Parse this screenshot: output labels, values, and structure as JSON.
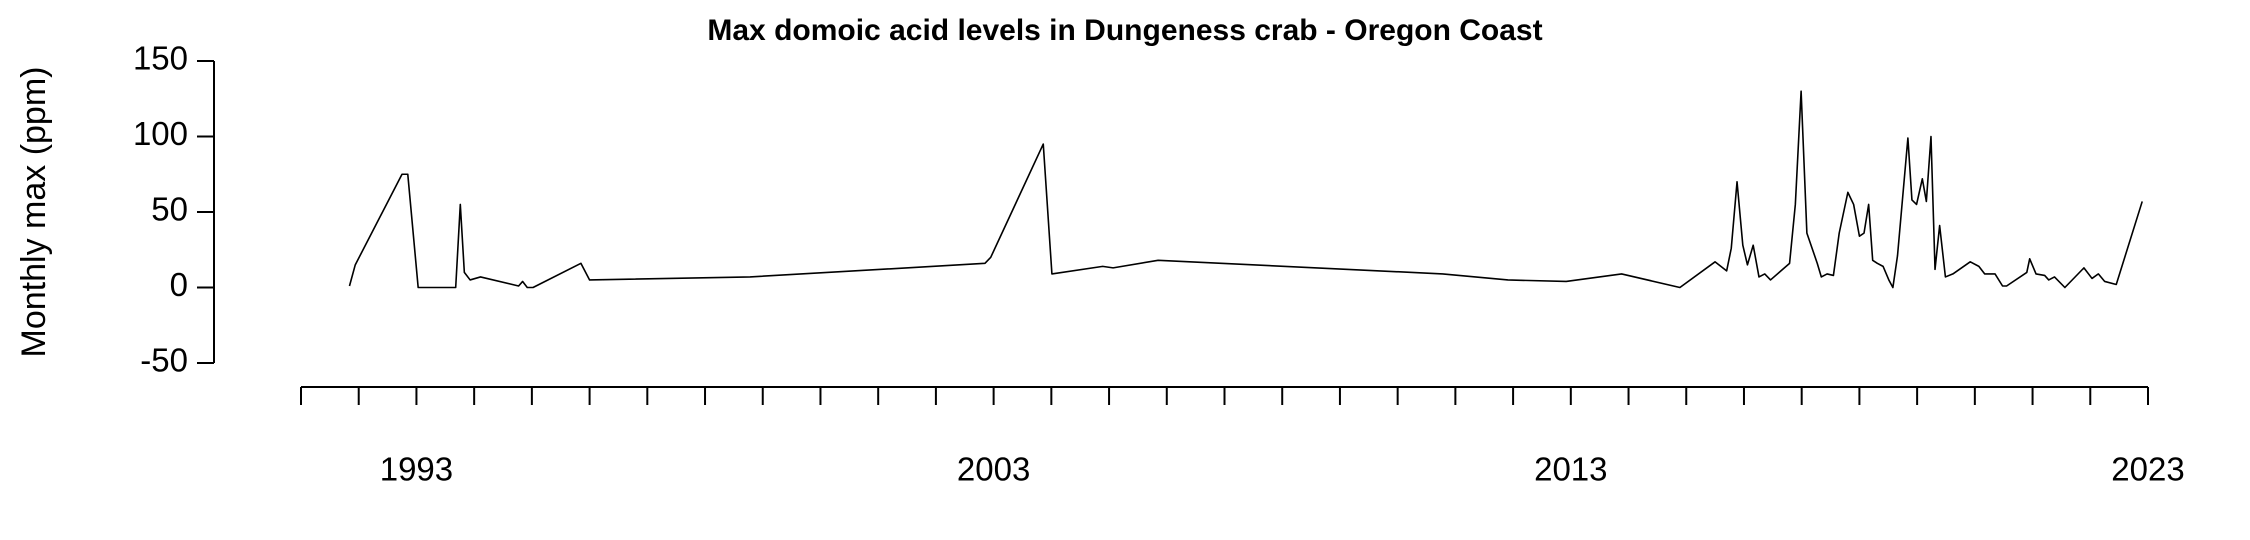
{
  "chart_data": {
    "type": "line",
    "title": "Max domoic acid levels in Dungeness crab - Oregon Coast",
    "y_label": "Monthly max (ppm)",
    "color": "#000000",
    "x": [
      1991.84,
      1991.94,
      1992.75,
      1992.85,
      1993.03,
      1993.68,
      1993.76,
      1993.83,
      1993.93,
      1994.11,
      1994.77,
      1994.84,
      1994.92,
      1995.02,
      1995.85,
      1996.0,
      1998.78,
      2002.85,
      2002.95,
      2003.86,
      2004.01,
      2004.89,
      2005.07,
      2005.85,
      2010.78,
      2011.91,
      2012.92,
      2013.88,
      2014.89,
      2015.5,
      2015.7,
      2015.78,
      2015.88,
      2015.98,
      2016.06,
      2016.16,
      2016.26,
      2016.36,
      2016.46,
      2016.64,
      2016.79,
      2016.89,
      2016.99,
      2017.09,
      2017.27,
      2017.34,
      2017.44,
      2017.55,
      2017.65,
      2017.8,
      2017.9,
      2018.0,
      2018.08,
      2018.16,
      2018.23,
      2018.31,
      2018.41,
      2018.51,
      2018.58,
      2018.66,
      2018.84,
      2018.91,
      2018.99,
      2019.09,
      2019.16,
      2019.24,
      2019.31,
      2019.39,
      2019.49,
      2019.62,
      2019.92,
      2020.07,
      2020.17,
      2020.35,
      2020.48,
      2020.55,
      2020.9,
      2020.95,
      2021.06,
      2021.21,
      2021.28,
      2021.38,
      2021.56,
      2021.89,
      2022.03,
      2022.14,
      2022.25,
      2022.45,
      2022.9
    ],
    "values": [
      1,
      15,
      75,
      75,
      0,
      0,
      55,
      10,
      5,
      7,
      1,
      4,
      0,
      0,
      16,
      5,
      7,
      16,
      20,
      95,
      9,
      14,
      13,
      18,
      9,
      5,
      4,
      9,
      0,
      17,
      11,
      26,
      70,
      28,
      15,
      28,
      7,
      9,
      5,
      11,
      16,
      55,
      130,
      36,
      16,
      7,
      9,
      8,
      36,
      63,
      55,
      34,
      36,
      55,
      18,
      16,
      14,
      5,
      0,
      21,
      99,
      58,
      55,
      72,
      57,
      100,
      12,
      41,
      7,
      9,
      17,
      14,
      9,
      9,
      1,
      1,
      10,
      19,
      9,
      8,
      5,
      7,
      0,
      13,
      6,
      9,
      4,
      2,
      57
    ],
    "xlim": [
      1991,
      2023
    ],
    "xticks": [
      1993,
      2003,
      2013,
      2023
    ],
    "xminor_ticks": [
      1991,
      1992,
      1994,
      1995,
      1996,
      1997,
      1998,
      1999,
      2000,
      2001,
      2002,
      2004,
      2005,
      2006,
      2007,
      2008,
      2009,
      2010,
      2011,
      2012,
      2014,
      2015,
      2016,
      2017,
      2018,
      2019,
      2020,
      2021,
      2022
    ],
    "ylim": [
      -50,
      150
    ],
    "yticks": [
      -50,
      0,
      50,
      100,
      150
    ]
  }
}
